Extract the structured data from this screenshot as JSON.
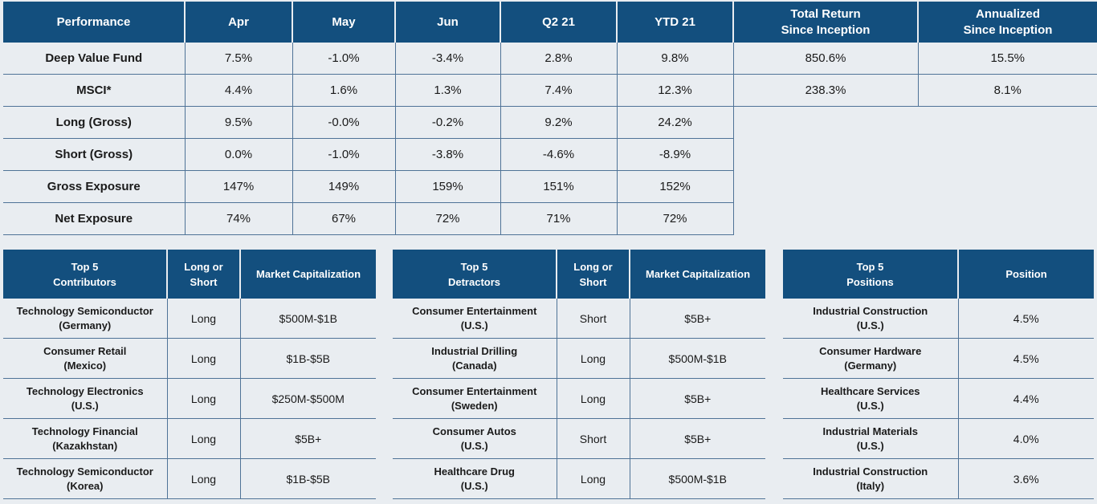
{
  "performance": {
    "headers": [
      "Performance",
      "Apr",
      "May",
      "Jun",
      "Q2 21",
      "YTD 21"
    ],
    "since_headers": [
      [
        "Total Return",
        "Since Inception"
      ],
      [
        "Annualized",
        "Since Inception"
      ]
    ],
    "rows": [
      {
        "label": "Deep Value Fund",
        "values": [
          "7.5%",
          "-1.0%",
          "-3.4%",
          "2.8%",
          "9.8%"
        ],
        "since": [
          "850.6%",
          "15.5%"
        ]
      },
      {
        "label": "MSCI*",
        "values": [
          "4.4%",
          "1.6%",
          "1.3%",
          "7.4%",
          "12.3%"
        ],
        "since": [
          "238.3%",
          "8.1%"
        ]
      },
      {
        "label": "Long (Gross)",
        "values": [
          "9.5%",
          "-0.0%",
          "-0.2%",
          "9.2%",
          "24.2%"
        ]
      },
      {
        "label": "Short (Gross)",
        "values": [
          "0.0%",
          "-1.0%",
          "-3.8%",
          "-4.6%",
          "-8.9%"
        ]
      },
      {
        "label": "Gross Exposure",
        "values": [
          "147%",
          "149%",
          "159%",
          "151%",
          "152%"
        ]
      },
      {
        "label": "Net Exposure",
        "values": [
          "74%",
          "67%",
          "72%",
          "71%",
          "72%"
        ]
      }
    ]
  },
  "contributors": {
    "headers": [
      [
        "Top 5",
        "Contributors"
      ],
      [
        "Long or",
        "Short"
      ],
      [
        "Market Capitalization"
      ]
    ],
    "rows": [
      {
        "name": "Technology Semiconductor",
        "country": "(Germany)",
        "side": "Long",
        "cap": "$500M-$1B"
      },
      {
        "name": "Consumer Retail",
        "country": "(Mexico)",
        "side": "Long",
        "cap": "$1B-$5B"
      },
      {
        "name": "Technology Electronics",
        "country": "(U.S.)",
        "side": "Long",
        "cap": "$250M-$500M"
      },
      {
        "name": "Technology Financial",
        "country": "(Kazakhstan)",
        "side": "Long",
        "cap": "$5B+"
      },
      {
        "name": "Technology Semiconductor",
        "country": "(Korea)",
        "side": "Long",
        "cap": "$1B-$5B"
      }
    ]
  },
  "detractors": {
    "headers": [
      [
        "Top 5",
        "Detractors"
      ],
      [
        "Long or",
        "Short"
      ],
      [
        "Market Capitalization"
      ]
    ],
    "rows": [
      {
        "name": "Consumer Entertainment",
        "country": "(U.S.)",
        "side": "Short",
        "cap": "$5B+"
      },
      {
        "name": "Industrial Drilling",
        "country": "(Canada)",
        "side": "Long",
        "cap": "$500M-$1B"
      },
      {
        "name": "Consumer Entertainment",
        "country": "(Sweden)",
        "side": "Long",
        "cap": "$5B+"
      },
      {
        "name": "Consumer Autos",
        "country": "(U.S.)",
        "side": "Short",
        "cap": "$5B+"
      },
      {
        "name": "Healthcare Drug",
        "country": "(U.S.)",
        "side": "Long",
        "cap": "$500M-$1B"
      }
    ]
  },
  "positions": {
    "headers": [
      [
        "Top 5",
        "Positions"
      ],
      [
        "Position"
      ]
    ],
    "rows": [
      {
        "name": "Industrial Construction",
        "country": "(U.S.)",
        "value": "4.5%"
      },
      {
        "name": "Consumer Hardware",
        "country": "(Germany)",
        "value": "4.5%"
      },
      {
        "name": "Healthcare Services",
        "country": "(U.S.)",
        "value": "4.4%"
      },
      {
        "name": "Industrial Materials",
        "country": "(U.S.)",
        "value": "4.0%"
      },
      {
        "name": "Industrial Construction",
        "country": "(Italy)",
        "value": "3.6%"
      }
    ]
  }
}
